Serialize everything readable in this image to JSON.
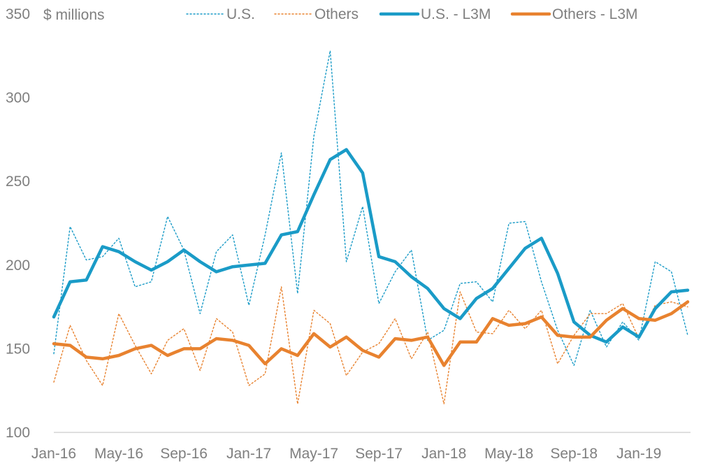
{
  "chart_data": {
    "type": "line",
    "unit_label": "$ millions",
    "x_tick_labels": [
      "Jan-16",
      "May-16",
      "Sep-16",
      "Jan-17",
      "May-17",
      "Sep-17",
      "Jan-18",
      "May-18",
      "Sep-18",
      "Jan-19"
    ],
    "ylim": [
      100,
      350
    ],
    "y_ticks": [
      100,
      150,
      200,
      250,
      300,
      350
    ],
    "grid": false,
    "legend_position": "top",
    "colors": {
      "us": "#1a9bc7",
      "others": "#e8822f"
    },
    "series": [
      {
        "name": "U.S.",
        "style": "dotted",
        "values": [
          147,
          223,
          203,
          205,
          216,
          187,
          190,
          229,
          209,
          171,
          208,
          218,
          176,
          218,
          267,
          183,
          277,
          328,
          202,
          235,
          177,
          196,
          209,
          155,
          161,
          189,
          190,
          178,
          225,
          226,
          190,
          161,
          140,
          173,
          151,
          166,
          155,
          202,
          196,
          158
        ]
      },
      {
        "name": "Others",
        "style": "dotted",
        "values": [
          130,
          164,
          143,
          128,
          171,
          152,
          135,
          155,
          162,
          137,
          168,
          160,
          128,
          135,
          187,
          117,
          173,
          165,
          134,
          148,
          153,
          168,
          144,
          160,
          117,
          184,
          160,
          159,
          173,
          162,
          173,
          141,
          158,
          171,
          171,
          177,
          156,
          176,
          178,
          175
        ]
      },
      {
        "name": "U.S. - L3M",
        "style": "solid",
        "values": [
          169,
          190,
          191,
          211,
          208,
          202,
          197,
          202,
          209,
          202,
          196,
          199,
          200,
          201,
          218,
          220,
          242,
          263,
          269,
          255,
          205,
          202,
          193,
          186,
          174,
          168,
          180,
          186,
          198,
          210,
          216,
          195,
          166,
          158,
          154,
          163,
          157,
          174,
          184,
          185
        ]
      },
      {
        "name": "Others - L3M",
        "style": "solid",
        "values": [
          153,
          152,
          145,
          144,
          146,
          150,
          152,
          146,
          150,
          150,
          156,
          155,
          152,
          141,
          150,
          146,
          159,
          151,
          157,
          149,
          145,
          156,
          155,
          157,
          140,
          154,
          154,
          168,
          164,
          165,
          169,
          158,
          157,
          157,
          167,
          174,
          168,
          167,
          171,
          178
        ]
      }
    ]
  }
}
